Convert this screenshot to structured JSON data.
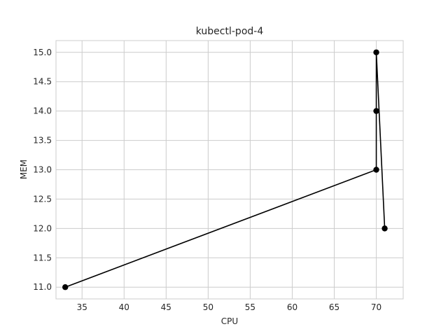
{
  "chart_data": {
    "type": "line",
    "title": "kubectl-pod-4",
    "xlabel": "CPU",
    "ylabel": "MEM",
    "xlim": [
      31.9,
      73.2
    ],
    "ylim": [
      10.8,
      15.2
    ],
    "xticks": [
      35,
      40,
      45,
      50,
      55,
      60,
      65,
      70
    ],
    "yticks": [
      11.0,
      11.5,
      12.0,
      12.5,
      13.0,
      13.5,
      14.0,
      14.5,
      15.0
    ],
    "xtick_labels": [
      "35",
      "40",
      "45",
      "50",
      "55",
      "60",
      "65",
      "70"
    ],
    "ytick_labels": [
      "11.0",
      "11.5",
      "12.0",
      "12.5",
      "13.0",
      "13.5",
      "14.0",
      "14.5",
      "15.0"
    ],
    "grid": true,
    "series": [
      {
        "color": "#000000",
        "marker": "circle",
        "x": [
          33,
          70,
          70,
          70,
          71
        ],
        "y": [
          11,
          13,
          14,
          15,
          12
        ]
      }
    ]
  }
}
